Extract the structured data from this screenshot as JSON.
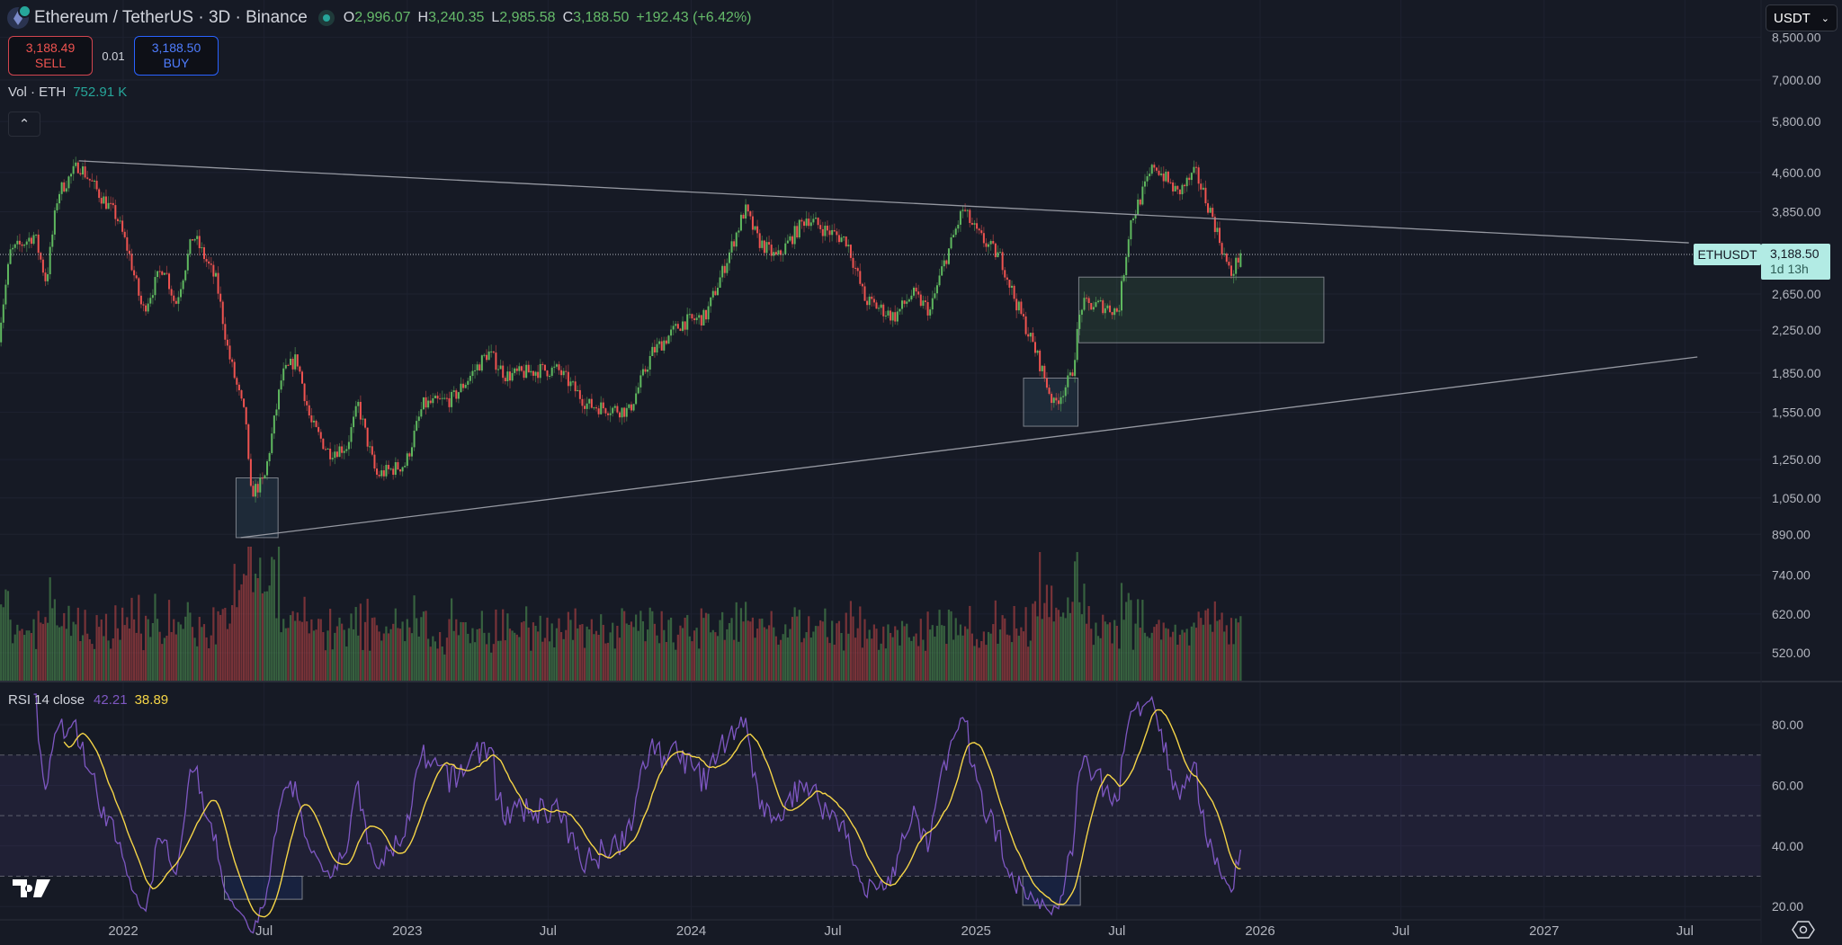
{
  "header": {
    "symbol": "Ethereum / TetherUS · 3D · Binance",
    "ohlc": [
      {
        "k": "O",
        "v": "2,996.07"
      },
      {
        "k": "H",
        "v": "3,240.35"
      },
      {
        "k": "L",
        "v": "2,985.58"
      },
      {
        "k": "C",
        "v": "3,188.50"
      }
    ],
    "change": "+192.43 (+6.42%)"
  },
  "trade": {
    "sell_price": "3,188.49",
    "sell_label": "SELL",
    "spread": "0.01",
    "buy_price": "3,188.50",
    "buy_label": "BUY"
  },
  "volume": {
    "label": "Vol · ETH",
    "value": "752.91 K"
  },
  "currency": "USDT",
  "last_price": {
    "symbol": "ETHUSDT",
    "price": "3,188.50",
    "countdown": "1d 13h"
  },
  "rsi": {
    "label": "RSI 14 close",
    "value": "42.21",
    "ma_value": "38.89"
  },
  "colors": {
    "up": "#5fb85f",
    "down": "#ef5350",
    "rsi": "#7e57c2",
    "rsi_ma": "#f5d547",
    "background": "#161a25",
    "last_price": "#b2ebe4"
  },
  "chart_data": {
    "type": "candlestick",
    "interval": "3D",
    "y_scale": "log",
    "price_ticks": [
      "8,500.00",
      "7,000.00",
      "5,800.00",
      "4,600.00",
      "3,850.00",
      "2,650.00",
      "2,250.00",
      "1,850.00",
      "1,550.00",
      "1,250.00",
      "1,050.00",
      "890.00",
      "740.00",
      "620.00",
      "520.00"
    ],
    "price_tick_values": [
      8500,
      7000,
      5800,
      4600,
      3850,
      2650,
      2250,
      1850,
      1550,
      1250,
      1050,
      890,
      740,
      620,
      520
    ],
    "rsi_ticks": [
      "80.00",
      "60.00",
      "40.00",
      "20.00"
    ],
    "rsi_tick_values": [
      80,
      60,
      40,
      20
    ],
    "rsi_bands": [
      70,
      50,
      30
    ],
    "time_ticks": [
      {
        "label": "2022",
        "date": "2022-01-01"
      },
      {
        "label": "Jul",
        "date": "2022-07-01"
      },
      {
        "label": "2023",
        "date": "2023-01-01"
      },
      {
        "label": "Jul",
        "date": "2023-07-01"
      },
      {
        "label": "2024",
        "date": "2024-01-01"
      },
      {
        "label": "Jul",
        "date": "2024-07-01"
      },
      {
        "label": "2025",
        "date": "2025-01-01"
      },
      {
        "label": "Jul",
        "date": "2025-07-01"
      },
      {
        "label": "2026",
        "date": "2026-01-01"
      },
      {
        "label": "Jul",
        "date": "2026-07-01"
      },
      {
        "label": "2027",
        "date": "2027-01-01"
      },
      {
        "label": "Jul",
        "date": "2027-07-01"
      }
    ],
    "close_path": [
      [
        "2021-07-25",
        2204
      ],
      [
        "2021-08-09",
        3199
      ],
      [
        "2021-09-09",
        3470
      ],
      [
        "2021-09-24",
        2800
      ],
      [
        "2021-10-09",
        4180
      ],
      [
        "2021-11-05",
        4770
      ],
      [
        "2021-12-01",
        4180
      ],
      [
        "2021-12-24",
        3755
      ],
      [
        "2022-01-08",
        3199
      ],
      [
        "2022-01-26",
        2452
      ],
      [
        "2022-02-22",
        3033
      ],
      [
        "2022-03-09",
        2518
      ],
      [
        "2022-04-01",
        3470
      ],
      [
        "2022-05-01",
        2800
      ],
      [
        "2022-05-16",
        2033
      ],
      [
        "2022-06-08",
        1477
      ],
      [
        "2022-06-13",
        1072
      ],
      [
        "2022-07-01",
        1132
      ],
      [
        "2022-07-24",
        1827
      ],
      [
        "2022-08-12",
        1980
      ],
      [
        "2022-08-30",
        1477
      ],
      [
        "2022-09-22",
        1293
      ],
      [
        "2022-10-15",
        1327
      ],
      [
        "2022-10-30",
        1600
      ],
      [
        "2022-11-22",
        1162
      ],
      [
        "2022-12-30",
        1225
      ],
      [
        "2023-01-21",
        1600
      ],
      [
        "2023-02-28",
        1644
      ],
      [
        "2023-03-23",
        1827
      ],
      [
        "2023-04-15",
        2033
      ],
      [
        "2023-05-08",
        1827
      ],
      [
        "2023-06-22",
        1877
      ],
      [
        "2023-07-14",
        1877
      ],
      [
        "2023-08-21",
        1600
      ],
      [
        "2023-10-13",
        1557
      ],
      [
        "2023-11-12",
        2033
      ],
      [
        "2023-12-20",
        2325
      ],
      [
        "2024-01-19",
        2387
      ],
      [
        "2024-02-11",
        2952
      ],
      [
        "2024-03-10",
        3896
      ],
      [
        "2024-03-27",
        3377
      ],
      [
        "2024-04-20",
        3115
      ],
      [
        "2024-05-28",
        3755
      ],
      [
        "2024-06-19",
        3558
      ],
      [
        "2024-07-19",
        3377
      ],
      [
        "2024-08-11",
        2585
      ],
      [
        "2024-09-18",
        2387
      ],
      [
        "2024-10-11",
        2655
      ],
      [
        "2024-11-03",
        2452
      ],
      [
        "2024-11-18",
        2952
      ],
      [
        "2024-12-15",
        3896
      ],
      [
        "2025-01-03",
        3470
      ],
      [
        "2025-02-02",
        3115
      ],
      [
        "2025-02-20",
        2585
      ],
      [
        "2025-03-19",
        2033
      ],
      [
        "2025-04-11",
        1600
      ],
      [
        "2025-05-04",
        1827
      ],
      [
        "2025-05-16",
        2518
      ],
      [
        "2025-06-11",
        2518
      ],
      [
        "2025-07-03",
        2452
      ],
      [
        "2025-07-18",
        3657
      ],
      [
        "2025-08-18",
        4770
      ],
      [
        "2025-09-17",
        4180
      ],
      [
        "2025-10-10",
        4600
      ],
      [
        "2025-11-01",
        3755
      ],
      [
        "2025-11-24",
        2875
      ],
      [
        "2025-12-07",
        3188.5
      ]
    ],
    "last_candle": {
      "open": 2996.07,
      "high": 3240.35,
      "low": 2985.58,
      "close": 3188.5,
      "volume": "752.91 K"
    },
    "drawings": {
      "trendlines": [
        {
          "from": [
            "2021-11-05",
            4850
          ],
          "to": [
            "2027-07-06",
            3343
          ]
        },
        {
          "from": [
            "2022-06-01",
            877
          ],
          "to": [
            "2027-07-17",
            1991
          ]
        }
      ],
      "price_boxes": [
        {
          "from": [
            "2022-05-26",
            1150
          ],
          "to": [
            "2022-07-19",
            877
          ],
          "color": "#5aa7c8"
        },
        {
          "from": [
            "2025-03-03",
            1809
          ],
          "to": [
            "2025-05-12",
            1454
          ],
          "color": "#5aa7c8"
        },
        {
          "from": [
            "2025-05-13",
            2861
          ],
          "to": [
            "2026-03-24",
            2124
          ],
          "color": "#66bb6a"
        }
      ],
      "rsi_boxes": [
        {
          "from": [
            "2022-05-11",
            30
          ],
          "to": [
            "2022-08-19",
            22.4
          ]
        },
        {
          "from": [
            "2025-03-02",
            30
          ],
          "to": [
            "2025-05-15",
            20.4
          ]
        }
      ]
    }
  }
}
